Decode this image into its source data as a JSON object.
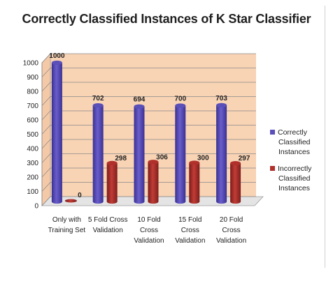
{
  "chart_data": {
    "type": "bar",
    "title": "Correctly Classified Instances of K Star Classifier",
    "categories": [
      [
        "Only with",
        "Training Set"
      ],
      [
        "5 Fold Cross",
        "Validation"
      ],
      [
        "10 Fold",
        "Cross",
        "Validation"
      ],
      [
        "15 Fold",
        "Cross",
        "Validation"
      ],
      [
        "20 Fold",
        "Cross",
        "Validation"
      ]
    ],
    "series": [
      {
        "name": "Correctly Classified Instances",
        "legend_lines": [
          "Correctly",
          "Classified",
          "Instances"
        ],
        "values": [
          1000,
          702,
          694,
          700,
          703
        ],
        "color": "#5b4fb8"
      },
      {
        "name": "Incorrectly Classified Instances",
        "legend_lines": [
          "Incorrectly",
          "Classified",
          "Instances"
        ],
        "values": [
          0,
          298,
          306,
          300,
          297
        ],
        "color": "#b0302c"
      }
    ],
    "ylim": [
      0,
      1000
    ],
    "yticks": [
      0,
      100,
      200,
      300,
      400,
      500,
      600,
      700,
      800,
      900,
      1000
    ],
    "grid": true,
    "legend_position": "right",
    "colors": {
      "plot_background": "#f8d3b4",
      "floor": "#e4e4e4"
    }
  }
}
